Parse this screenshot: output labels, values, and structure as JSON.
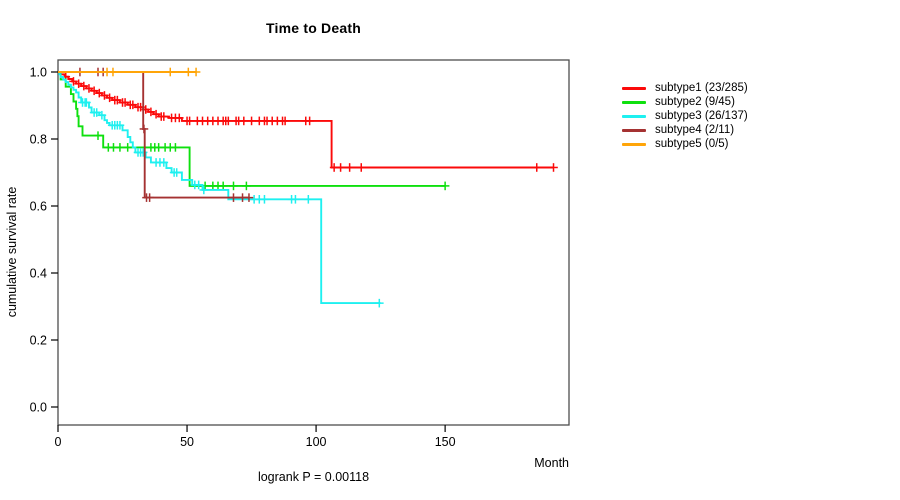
{
  "chart_data": {
    "type": "line",
    "chart_kind": "kaplan-meier-survival",
    "title": "Time to Death",
    "xlabel": "Month",
    "ylabel": "cumulative survival rate",
    "annotation": "logrank P = 0.00118",
    "p_value": 0.00118,
    "xlim": [
      0,
      198
    ],
    "ylim": [
      0,
      1
    ],
    "xticks": [
      0,
      50,
      100,
      150
    ],
    "yticks": [
      0,
      0.2,
      0.4,
      0.6,
      0.8,
      1
    ],
    "grid": false,
    "legend_position": "right-outside",
    "series": [
      {
        "name": "subtype1",
        "label": "subtype1 (23/285)",
        "events": 23,
        "n": 285,
        "color": "#fb0a0a",
        "end_month": 192,
        "steps": [
          [
            0,
            1.0
          ],
          [
            1,
            0.993
          ],
          [
            2.5,
            0.986
          ],
          [
            4,
            0.979
          ],
          [
            5.5,
            0.972
          ],
          [
            7,
            0.965
          ],
          [
            9,
            0.958
          ],
          [
            11,
            0.951
          ],
          [
            13,
            0.944
          ],
          [
            15,
            0.937
          ],
          [
            17,
            0.93
          ],
          [
            19,
            0.923
          ],
          [
            21,
            0.916
          ],
          [
            24,
            0.909
          ],
          [
            27,
            0.902
          ],
          [
            30,
            0.895
          ],
          [
            33,
            0.888
          ],
          [
            35,
            0.881
          ],
          [
            37,
            0.874
          ],
          [
            39,
            0.867
          ],
          [
            43,
            0.863
          ],
          [
            48,
            0.854
          ],
          [
            106,
            0.715
          ]
        ],
        "censor_months": [
          3,
          6,
          8,
          10,
          12,
          14,
          16,
          18,
          20,
          22,
          23,
          25,
          26,
          28,
          29,
          31,
          32,
          34,
          36,
          38,
          40,
          41,
          44,
          45.5,
          47,
          50,
          51,
          54,
          56,
          58,
          60,
          62,
          64,
          65,
          66,
          69,
          70,
          72,
          75,
          78,
          80,
          81,
          83,
          85,
          87,
          88,
          96,
          97.5,
          107,
          109.5,
          113,
          117.5,
          185.5,
          192
        ]
      },
      {
        "name": "subtype2",
        "label": "subtype2 (9/45)",
        "events": 9,
        "n": 45,
        "color": "#0ee00e",
        "end_month": 150,
        "steps": [
          [
            0,
            1.0
          ],
          [
            1,
            0.978
          ],
          [
            3,
            0.956
          ],
          [
            5,
            0.934
          ],
          [
            6,
            0.912
          ],
          [
            7,
            0.89
          ],
          [
            7.5,
            0.868
          ],
          [
            8,
            0.838
          ],
          [
            9.5,
            0.81
          ],
          [
            17.5,
            0.775
          ],
          [
            51,
            0.66
          ]
        ],
        "censor_months": [
          15.5,
          19.5,
          21.5,
          24,
          27,
          36,
          37.5,
          39,
          41.5,
          43.5,
          45.5,
          57,
          60,
          62,
          64,
          68,
          73,
          150
        ]
      },
      {
        "name": "subtype3",
        "label": "subtype3 (26/137)",
        "events": 26,
        "n": 137,
        "color": "#1ef0f0",
        "end_month": 125,
        "steps": [
          [
            0,
            1.0
          ],
          [
            0.5,
            0.993
          ],
          [
            1,
            0.985
          ],
          [
            2,
            0.977
          ],
          [
            3,
            0.97
          ],
          [
            4,
            0.962
          ],
          [
            5,
            0.954
          ],
          [
            6,
            0.947
          ],
          [
            7,
            0.939
          ],
          [
            8,
            0.924
          ],
          [
            9,
            0.909
          ],
          [
            12,
            0.894
          ],
          [
            13,
            0.879
          ],
          [
            16,
            0.871
          ],
          [
            18,
            0.856
          ],
          [
            19,
            0.848
          ],
          [
            20,
            0.841
          ],
          [
            25,
            0.826
          ],
          [
            27,
            0.806
          ],
          [
            28,
            0.79
          ],
          [
            29,
            0.775
          ],
          [
            30,
            0.76
          ],
          [
            34,
            0.745
          ],
          [
            36,
            0.73
          ],
          [
            42,
            0.713
          ],
          [
            44,
            0.7
          ],
          [
            48,
            0.678
          ],
          [
            52,
            0.663
          ],
          [
            56,
            0.648
          ],
          [
            66,
            0.62
          ],
          [
            102,
            0.31
          ]
        ],
        "censor_months": [
          9.5,
          10.5,
          11,
          14,
          15,
          17,
          21,
          22,
          23,
          24,
          31,
          32,
          33,
          38,
          39.5,
          41,
          45,
          46,
          53,
          54.5,
          56.5,
          76,
          78,
          80,
          90.5,
          92,
          97,
          124.5
        ]
      },
      {
        "name": "subtype4",
        "label": "subtype4 (2/11)",
        "events": 2,
        "n": 11,
        "color": "#a53232",
        "end_month": 74,
        "steps": [
          [
            0,
            1.0
          ],
          [
            33,
            0.83
          ],
          [
            33.6,
            0.625
          ]
        ],
        "censor_months": [
          8.5,
          15.5,
          17.5,
          33.3,
          34.3,
          35.5,
          68,
          71.5,
          74
        ]
      },
      {
        "name": "subtype5",
        "label": "subtype5 (0/5)",
        "events": 0,
        "n": 5,
        "color": "#ffa509",
        "end_month": 53.5,
        "steps": [
          [
            0,
            1.0
          ]
        ],
        "censor_months": [
          19,
          21.3,
          43.5,
          50.5,
          53.5
        ]
      }
    ]
  }
}
